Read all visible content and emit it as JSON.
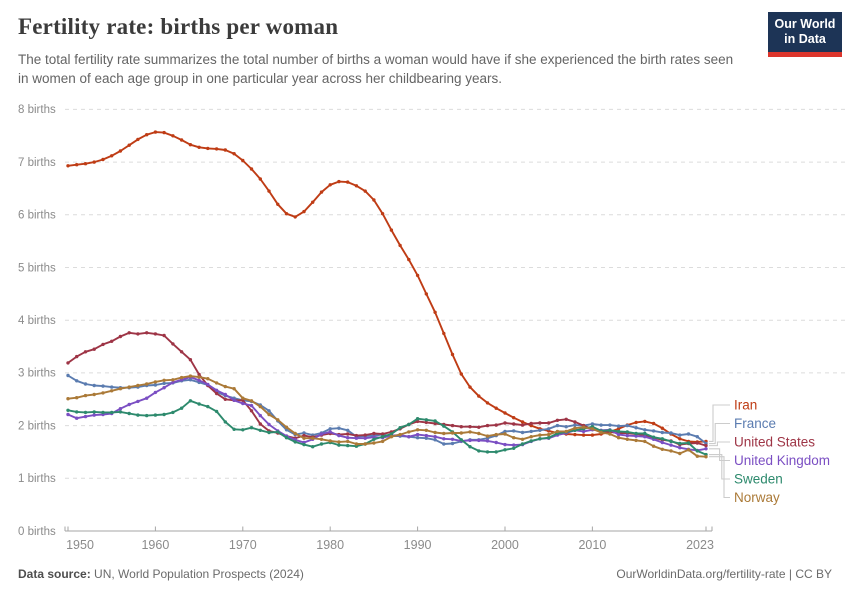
{
  "header": {
    "title": "Fertility rate: births per woman",
    "subtitle": "The total fertility rate summarizes the total number of births a woman would have if she experienced the birth rates seen in women of each age group in one particular year across her childbearing years."
  },
  "logo": {
    "line1": "Our World",
    "line2": "in Data",
    "bg_color": "#1d3456",
    "accent_color": "#dc352c"
  },
  "footer": {
    "source_label": "Data source:",
    "source_value": " UN, World Population Prospects (2024)",
    "right_text": "OurWorldinData.org/fertility-rate | CC BY"
  },
  "chart_data": {
    "type": "line",
    "title": "Fertility rate: births per woman",
    "xlabel": "",
    "ylabel": "births per woman",
    "grid": true,
    "legend_position": "right",
    "start_year": 1950,
    "end_year": 2023,
    "x_ticks": [
      1950,
      1960,
      1970,
      1980,
      1990,
      2000,
      2010,
      2023
    ],
    "y_ticks": [
      0,
      1,
      2,
      3,
      4,
      5,
      6,
      7,
      8
    ],
    "y_tick_unit": "births",
    "ylim": [
      0,
      8
    ],
    "grid_color": "#dcdcdc",
    "axis_color": "#a6a6a6",
    "tick_label_color": "#8b8b8b",
    "connector_color": "#cccccc",
    "series": [
      {
        "name": "Iran",
        "color": "#bf3c15",
        "values": [
          6.93,
          6.95,
          6.97,
          7.0,
          7.05,
          7.12,
          7.21,
          7.32,
          7.43,
          7.52,
          7.57,
          7.56,
          7.5,
          7.42,
          7.33,
          7.28,
          7.26,
          7.25,
          7.23,
          7.16,
          7.03,
          6.87,
          6.68,
          6.45,
          6.2,
          6.02,
          5.96,
          6.06,
          6.24,
          6.43,
          6.57,
          6.63,
          6.62,
          6.55,
          6.45,
          6.28,
          6.02,
          5.71,
          5.42,
          5.15,
          4.85,
          4.5,
          4.15,
          3.75,
          3.35,
          2.98,
          2.73,
          2.56,
          2.43,
          2.33,
          2.24,
          2.15,
          2.07,
          2.0,
          1.94,
          1.9,
          1.86,
          1.84,
          1.83,
          1.82,
          1.82,
          1.84,
          1.88,
          1.94,
          2.01,
          2.06,
          2.08,
          2.04,
          1.95,
          1.84,
          1.75,
          1.7,
          1.69,
          1.7
        ]
      },
      {
        "name": "France",
        "color": "#5b7cb0",
        "values": [
          2.95,
          2.85,
          2.79,
          2.76,
          2.75,
          2.73,
          2.72,
          2.72,
          2.73,
          2.76,
          2.77,
          2.8,
          2.81,
          2.85,
          2.87,
          2.82,
          2.77,
          2.64,
          2.57,
          2.52,
          2.48,
          2.46,
          2.39,
          2.28,
          2.09,
          1.92,
          1.83,
          1.86,
          1.82,
          1.86,
          1.94,
          1.95,
          1.91,
          1.79,
          1.8,
          1.81,
          1.83,
          1.8,
          1.8,
          1.79,
          1.77,
          1.76,
          1.73,
          1.65,
          1.66,
          1.7,
          1.73,
          1.73,
          1.76,
          1.81,
          1.89,
          1.9,
          1.87,
          1.89,
          1.91,
          1.94,
          2.0,
          1.98,
          2.01,
          2.0,
          2.03,
          2.01,
          2.01,
          1.99,
          2.0,
          1.96,
          1.92,
          1.9,
          1.87,
          1.86,
          1.82,
          1.84,
          1.79,
          1.66
        ]
      },
      {
        "name": "United States",
        "color": "#9e3546",
        "values": [
          3.19,
          3.31,
          3.4,
          3.45,
          3.54,
          3.6,
          3.69,
          3.76,
          3.74,
          3.76,
          3.74,
          3.71,
          3.55,
          3.4,
          3.25,
          2.97,
          2.76,
          2.61,
          2.5,
          2.48,
          2.48,
          2.28,
          2.03,
          1.9,
          1.86,
          1.8,
          1.76,
          1.81,
          1.78,
          1.82,
          1.85,
          1.83,
          1.84,
          1.81,
          1.82,
          1.85,
          1.84,
          1.88,
          1.94,
          2.02,
          2.08,
          2.06,
          2.04,
          2.02,
          2.0,
          1.98,
          1.98,
          1.97,
          2.0,
          2.01,
          2.05,
          2.03,
          2.01,
          2.04,
          2.05,
          2.05,
          2.1,
          2.12,
          2.07,
          2.0,
          1.93,
          1.89,
          1.88,
          1.86,
          1.86,
          1.84,
          1.82,
          1.77,
          1.73,
          1.71,
          1.64,
          1.66,
          1.67,
          1.62
        ]
      },
      {
        "name": "United Kingdom",
        "color": "#7b4fc3",
        "values": [
          2.21,
          2.14,
          2.17,
          2.2,
          2.21,
          2.23,
          2.32,
          2.4,
          2.46,
          2.52,
          2.63,
          2.72,
          2.82,
          2.87,
          2.92,
          2.86,
          2.78,
          2.67,
          2.59,
          2.48,
          2.42,
          2.38,
          2.19,
          2.02,
          1.9,
          1.8,
          1.73,
          1.68,
          1.74,
          1.84,
          1.88,
          1.81,
          1.77,
          1.76,
          1.76,
          1.78,
          1.77,
          1.81,
          1.82,
          1.79,
          1.83,
          1.81,
          1.79,
          1.75,
          1.74,
          1.71,
          1.72,
          1.72,
          1.71,
          1.68,
          1.64,
          1.63,
          1.64,
          1.7,
          1.75,
          1.76,
          1.82,
          1.86,
          1.91,
          1.89,
          1.92,
          1.91,
          1.92,
          1.83,
          1.81,
          1.8,
          1.79,
          1.74,
          1.68,
          1.63,
          1.58,
          1.55,
          1.53,
          1.56
        ]
      },
      {
        "name": "Sweden",
        "color": "#2d8a6d",
        "values": [
          2.29,
          2.26,
          2.25,
          2.26,
          2.25,
          2.25,
          2.26,
          2.23,
          2.2,
          2.19,
          2.2,
          2.21,
          2.25,
          2.33,
          2.47,
          2.41,
          2.36,
          2.27,
          2.07,
          1.93,
          1.92,
          1.96,
          1.91,
          1.87,
          1.88,
          1.77,
          1.69,
          1.64,
          1.6,
          1.65,
          1.68,
          1.63,
          1.62,
          1.61,
          1.65,
          1.74,
          1.79,
          1.84,
          1.96,
          2.02,
          2.13,
          2.11,
          2.09,
          1.99,
          1.88,
          1.73,
          1.6,
          1.52,
          1.5,
          1.5,
          1.54,
          1.57,
          1.65,
          1.71,
          1.75,
          1.77,
          1.85,
          1.88,
          1.91,
          1.94,
          1.98,
          1.9,
          1.91,
          1.89,
          1.88,
          1.85,
          1.85,
          1.78,
          1.75,
          1.7,
          1.66,
          1.67,
          1.52,
          1.45
        ]
      },
      {
        "name": "Norway",
        "color": "#ab7a38",
        "values": [
          2.51,
          2.53,
          2.57,
          2.59,
          2.62,
          2.66,
          2.7,
          2.73,
          2.76,
          2.79,
          2.83,
          2.86,
          2.87,
          2.91,
          2.94,
          2.92,
          2.89,
          2.81,
          2.74,
          2.7,
          2.52,
          2.47,
          2.36,
          2.21,
          2.11,
          1.97,
          1.85,
          1.76,
          1.76,
          1.74,
          1.71,
          1.69,
          1.7,
          1.65,
          1.65,
          1.67,
          1.7,
          1.79,
          1.83,
          1.88,
          1.92,
          1.91,
          1.87,
          1.85,
          1.86,
          1.86,
          1.88,
          1.85,
          1.8,
          1.83,
          1.84,
          1.77,
          1.74,
          1.79,
          1.82,
          1.83,
          1.89,
          1.89,
          1.95,
          1.97,
          1.94,
          1.87,
          1.84,
          1.77,
          1.74,
          1.72,
          1.7,
          1.61,
          1.55,
          1.52,
          1.47,
          1.54,
          1.42,
          1.41
        ]
      }
    ]
  }
}
